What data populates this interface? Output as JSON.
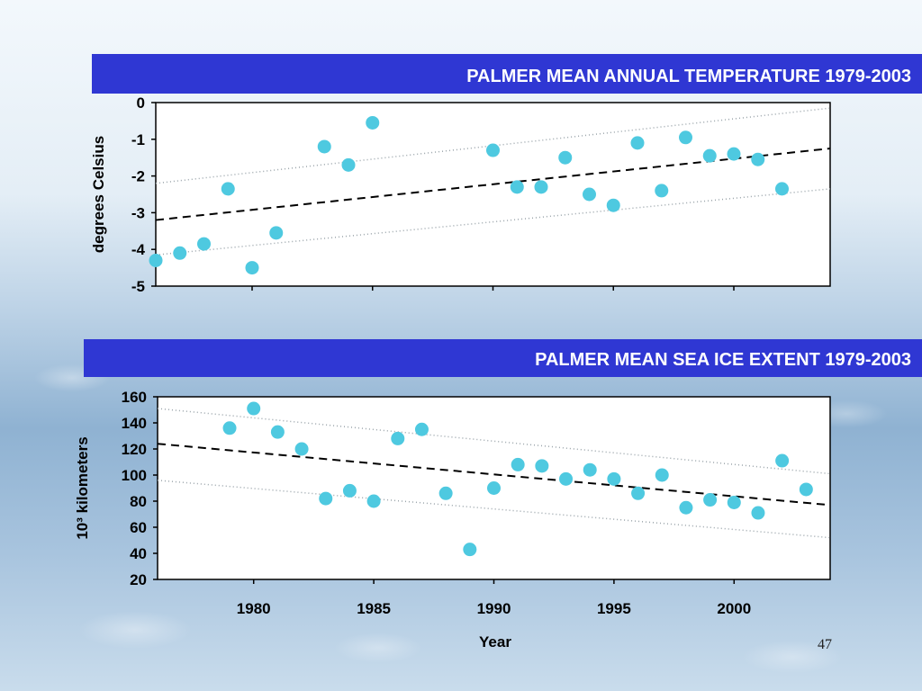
{
  "slide": {
    "page_number": "47",
    "banner_color": "#2f37d3",
    "marker_color": "#4ec9e0"
  },
  "chart_data": [
    {
      "type": "scatter",
      "title": "PALMER MEAN ANNUAL TEMPERATURE 1979-2003",
      "xlabel": "",
      "ylabel": "degrees Celsius",
      "xlim": [
        1976,
        2004
      ],
      "ylim": [
        -5,
        0
      ],
      "yticks": [
        0,
        -1,
        -2,
        -3,
        -4,
        -5
      ],
      "grid": false,
      "x": [
        1976,
        1977,
        1978,
        1979,
        1980,
        1981,
        1983,
        1984,
        1985,
        1990,
        1991,
        1992,
        1993,
        1994,
        1995,
        1996,
        1997,
        1998,
        1999,
        2000,
        2001,
        2002
      ],
      "y": [
        -4.3,
        -4.1,
        -3.85,
        -2.35,
        -4.5,
        -3.55,
        -1.2,
        -1.7,
        -0.55,
        -1.3,
        -2.3,
        -2.3,
        -1.5,
        -2.5,
        -2.8,
        -1.1,
        -2.4,
        -0.95,
        -1.45,
        -1.4,
        -1.55,
        -2.35
      ],
      "trend": {
        "x": [
          1976,
          2004
        ],
        "y": [
          -3.2,
          -1.25
        ]
      },
      "band_upper": {
        "x": [
          1976,
          2004
        ],
        "y": [
          -2.2,
          -0.15
        ]
      },
      "band_lower": {
        "x": [
          1976,
          2004
        ],
        "y": [
          -4.15,
          -2.35
        ]
      }
    },
    {
      "type": "scatter",
      "title": "PALMER MEAN SEA ICE EXTENT 1979-2003",
      "xlabel": "Year",
      "ylabel": "10³ kilometers",
      "xlim": [
        1976,
        2004
      ],
      "ylim": [
        20,
        160
      ],
      "xticks": [
        1980,
        1985,
        1990,
        1995,
        2000
      ],
      "yticks": [
        160,
        140,
        120,
        100,
        80,
        60,
        40,
        20
      ],
      "grid": false,
      "x": [
        1979,
        1980,
        1981,
        1982,
        1983,
        1984,
        1985,
        1986,
        1987,
        1988,
        1989,
        1990,
        1991,
        1992,
        1993,
        1994,
        1995,
        1996,
        1997,
        1998,
        1999,
        2000,
        2001,
        2002,
        2003
      ],
      "y": [
        136,
        151,
        133,
        120,
        82,
        88,
        80,
        128,
        135,
        86,
        43,
        90,
        108,
        107,
        97,
        104,
        97,
        86,
        100,
        75,
        81,
        79,
        71,
        111,
        89
      ],
      "trend": {
        "x": [
          1976,
          2004
        ],
        "y": [
          124,
          77
        ]
      },
      "band_upper": {
        "x": [
          1976,
          2004
        ],
        "y": [
          151,
          101
        ]
      },
      "band_lower": {
        "x": [
          1976,
          2004
        ],
        "y": [
          96,
          52
        ]
      }
    }
  ]
}
